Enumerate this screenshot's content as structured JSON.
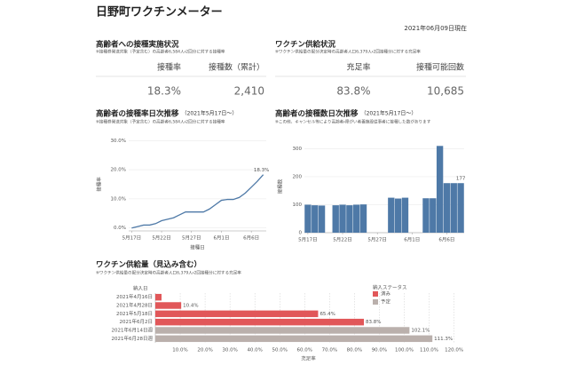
{
  "header": {
    "title": "日野町ワクチンメーター",
    "date": "2021年06月09日現在"
  },
  "kpis": [
    {
      "title": "高齢者への接種実施状況",
      "note": "※接種券発送対象（予定含む）の高齢者6,584人・2回分に対する接種率",
      "headers": [
        "接種率",
        "接種数（累計）"
      ],
      "values": [
        "18.3%",
        "2,410"
      ]
    },
    {
      "title": "ワクチン供給状況",
      "note": "※ワクチン供給量の配分決定時の高齢者人口6,379人・2回接種分に対する充足率",
      "headers": [
        "充足率",
        "接種可能回数"
      ],
      "values": [
        "83.8%",
        "10,685"
      ]
    }
  ],
  "chart_data": [
    {
      "type": "line",
      "title": "高齢者の接種率日次推移",
      "subtitle": "（2021年5月17日〜）",
      "note": "※接種券発送対象（予定含む）の高齢者6,584人・2回分に対する接種率",
      "y_label": "接種率",
      "x_label": "接種日",
      "color": "#4e79a7",
      "categories": [
        "5月17日",
        null,
        null,
        null,
        null,
        "5月22日",
        null,
        null,
        null,
        null,
        "5月27日",
        null,
        null,
        null,
        null,
        "6月1日",
        null,
        null,
        null,
        null,
        "6月6日",
        null,
        null
      ],
      "values": [
        0,
        0.5,
        1,
        1,
        1.5,
        2.5,
        3,
        3.5,
        4.5,
        5.5,
        5.5,
        5.5,
        5.5,
        6.5,
        8,
        9.5,
        9.8,
        9.8,
        10.5,
        12,
        14,
        16,
        18.3
      ],
      "value_labels": [
        null,
        null,
        null,
        null,
        null,
        null,
        null,
        null,
        null,
        null,
        null,
        null,
        null,
        null,
        null,
        null,
        null,
        null,
        null,
        null,
        null,
        null,
        "18.3%"
      ],
      "ylim": [
        -1,
        31
      ],
      "yticks": [
        {
          "value": 0,
          "label": "0.0%"
        },
        {
          "value": 10,
          "label": "10.0%"
        },
        {
          "value": 20,
          "label": "20.0%"
        },
        {
          "value": 30,
          "label": "30.0%"
        }
      ],
      "grid": true
    },
    {
      "type": "bar",
      "title": "高齢者の接種数日次推移",
      "subtitle": "（2021年5月17日〜）",
      "note": "※この他、キャンセル等により高齢者・障がい者養施設従事者に接種した数があります",
      "y_label": "接種数",
      "color": "#4e79a7",
      "categories": [
        "5月17日",
        null,
        null,
        null,
        null,
        "5月22日",
        null,
        null,
        null,
        null,
        "5月27日",
        null,
        null,
        null,
        null,
        "6月1日",
        null,
        null,
        null,
        null,
        "6月6日",
        null,
        null
      ],
      "values": [
        100,
        98,
        97,
        null,
        98,
        100,
        98,
        100,
        101,
        null,
        null,
        null,
        125,
        122,
        125,
        null,
        null,
        123,
        123,
        310,
        177,
        177,
        177
      ],
      "value_labels": [
        null,
        null,
        null,
        null,
        null,
        null,
        null,
        null,
        null,
        null,
        null,
        null,
        null,
        null,
        null,
        null,
        null,
        null,
        null,
        null,
        null,
        null,
        "177"
      ],
      "ylim": [
        0,
        330
      ],
      "yticks": [
        0,
        100,
        200,
        300
      ],
      "grid": true
    },
    {
      "type": "hbar",
      "title": "ワクチン供給量（見込み含む）",
      "note": "※ワクチン供給量の配分決定時の高齢者人口6,379人・2回接種分に対する充足率",
      "y_label": "納入日",
      "x_label": "充足率",
      "legend_title": "納入ステータス",
      "legend": "top-right",
      "categories": [
        "2021年4月16日",
        "2021年4月28日",
        "2021年5月18日",
        "2021年6月2日",
        "2021年6月14日週",
        "2021年6月28日週"
      ],
      "series": [
        {
          "name": "済み",
          "color": "#e15759",
          "values": [
            2.5,
            10.4,
            65.4,
            83.8,
            null,
            null
          ],
          "value_labels": [
            null,
            "10.4%",
            "65.4%",
            "83.8%",
            null,
            null
          ]
        },
        {
          "name": "予定",
          "color": "#bab0ac",
          "values": [
            null,
            null,
            null,
            null,
            102.1,
            111.3
          ],
          "value_labels": [
            null,
            null,
            null,
            null,
            "102.1%",
            "111.3%"
          ]
        }
      ],
      "xlim": [
        0,
        123
      ],
      "xticks": [
        {
          "value": 10,
          "label": "10.0%"
        },
        {
          "value": 20,
          "label": "20.0%"
        },
        {
          "value": 30,
          "label": "30.0%"
        },
        {
          "value": 40,
          "label": "40.0%"
        },
        {
          "value": 50,
          "label": "50.0%"
        },
        {
          "value": 60,
          "label": "60.0%"
        },
        {
          "value": 70,
          "label": "70.0%"
        },
        {
          "value": 80,
          "label": "80.0%"
        },
        {
          "value": 90,
          "label": "90.0%"
        },
        {
          "value": 100,
          "label": "100.0%"
        },
        {
          "value": 110,
          "label": "110.0%"
        },
        {
          "value": 120,
          "label": "120.0%"
        }
      ],
      "grid": true
    }
  ]
}
